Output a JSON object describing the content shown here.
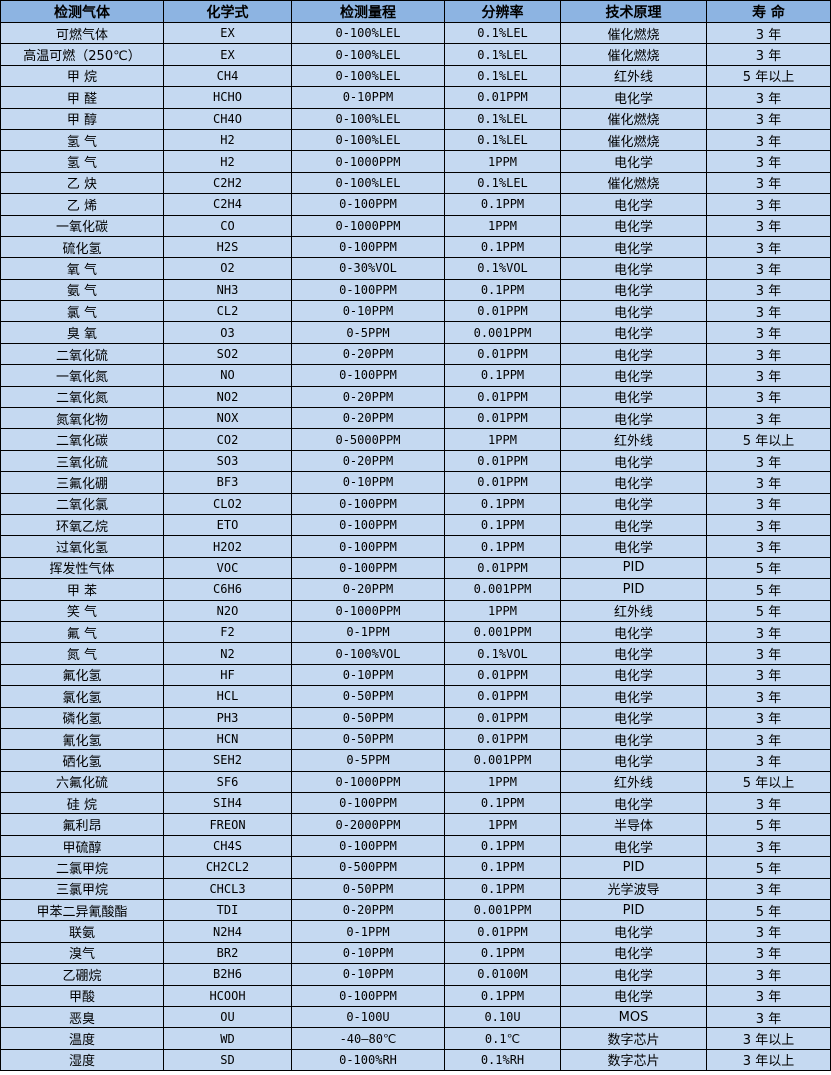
{
  "colors": {
    "header_bg": "#8db4e2",
    "row_bg": "#c5d9f1"
  },
  "table": {
    "columns": [
      "检测气体",
      "化学式",
      "检测量程",
      "分辨率",
      "技术原理",
      "寿 命"
    ],
    "rows": [
      [
        "可燃气体",
        "EX",
        "0-100%LEL",
        "0.1%LEL",
        "催化燃烧",
        "3 年"
      ],
      [
        "高温可燃（250℃）",
        "EX",
        "0-100%LEL",
        "0.1%LEL",
        "催化燃烧",
        "3 年"
      ],
      [
        "甲 烷",
        "CH4",
        "0-100%LEL",
        "0.1%LEL",
        "红外线",
        "5 年以上"
      ],
      [
        "甲 醛",
        "HCHO",
        "0-10PPM",
        "0.01PPM",
        "电化学",
        "3 年"
      ],
      [
        "甲 醇",
        "CH4O",
        "0-100%LEL",
        "0.1%LEL",
        "催化燃烧",
        "3 年"
      ],
      [
        "氢 气",
        "H2",
        "0-100%LEL",
        "0.1%LEL",
        "催化燃烧",
        "3 年"
      ],
      [
        "氢 气",
        "H2",
        "0-1000PPM",
        "1PPM",
        "电化学",
        "3 年"
      ],
      [
        "乙 炔",
        "C2H2",
        "0-100%LEL",
        "0.1%LEL",
        "催化燃烧",
        "3 年"
      ],
      [
        "乙 烯",
        "C2H4",
        "0-100PPM",
        "0.1PPM",
        "电化学",
        "3 年"
      ],
      [
        "一氧化碳",
        "CO",
        "0-1000PPM",
        "1PPM",
        "电化学",
        "3 年"
      ],
      [
        "硫化氢",
        "H2S",
        "0-100PPM",
        "0.1PPM",
        "电化学",
        "3 年"
      ],
      [
        "氧 气",
        "O2",
        "0-30%VOL",
        "0.1%VOL",
        "电化学",
        "3 年"
      ],
      [
        "氨 气",
        "NH3",
        "0-100PPM",
        "0.1PPM",
        "电化学",
        "3 年"
      ],
      [
        "氯 气",
        "CL2",
        "0-10PPM",
        "0.01PPM",
        "电化学",
        "3 年"
      ],
      [
        "臭 氧",
        "O3",
        "0-5PPM",
        "0.001PPM",
        "电化学",
        "3 年"
      ],
      [
        "二氧化硫",
        "SO2",
        "0-20PPM",
        "0.01PPM",
        "电化学",
        "3 年"
      ],
      [
        "一氧化氮",
        "NO",
        "0-100PPM",
        "0.1PPM",
        "电化学",
        "3 年"
      ],
      [
        "二氧化氮",
        "NO2",
        "0-20PPM",
        "0.01PPM",
        "电化学",
        "3 年"
      ],
      [
        "氮氧化物",
        "NOX",
        "0-20PPM",
        "0.01PPM",
        "电化学",
        "3 年"
      ],
      [
        "二氧化碳",
        "CO2",
        "0-5000PPM",
        "1PPM",
        "红外线",
        "5 年以上"
      ],
      [
        "三氧化硫",
        "SO3",
        "0-20PPM",
        "0.01PPM",
        "电化学",
        "3 年"
      ],
      [
        "三氟化硼",
        "BF3",
        "0-10PPM",
        "0.01PPM",
        "电化学",
        "3 年"
      ],
      [
        "二氧化氯",
        "CLO2",
        "0-100PPM",
        "0.1PPM",
        "电化学",
        "3 年"
      ],
      [
        "环氧乙烷",
        "ETO",
        "0-100PPM",
        "0.1PPM",
        "电化学",
        "3 年"
      ],
      [
        "过氧化氢",
        "H2O2",
        "0-100PPM",
        "0.1PPM",
        "电化学",
        "3 年"
      ],
      [
        "挥发性气体",
        "VOC",
        "0-100PPM",
        "0.01PPM",
        "PID",
        "5 年"
      ],
      [
        "甲 苯",
        "C6H6",
        "0-20PPM",
        "0.001PPM",
        "PID",
        "5 年"
      ],
      [
        "笑 气",
        "N2O",
        "0-1000PPM",
        "1PPM",
        "红外线",
        "5 年"
      ],
      [
        "氟 气",
        "F2",
        "0-1PPM",
        "0.001PPM",
        "电化学",
        "3 年"
      ],
      [
        "氮 气",
        "N2",
        "0-100%VOL",
        "0.1%VOL",
        "电化学",
        "3 年"
      ],
      [
        "氟化氢",
        "HF",
        "0-10PPM",
        "0.01PPM",
        "电化学",
        "3 年"
      ],
      [
        "氯化氢",
        "HCL",
        "0-50PPM",
        "0.01PPM",
        "电化学",
        "3 年"
      ],
      [
        "磷化氢",
        "PH3",
        "0-50PPM",
        "0.01PPM",
        "电化学",
        "3 年"
      ],
      [
        "氰化氢",
        "HCN",
        "0-50PPM",
        "0.01PPM",
        "电化学",
        "3 年"
      ],
      [
        "硒化氢",
        "SEH2",
        "0-5PPM",
        "0.001PPM",
        "电化学",
        "3 年"
      ],
      [
        "六氟化硫",
        "SF6",
        "0-1000PPM",
        "1PPM",
        "红外线",
        "5 年以上"
      ],
      [
        "硅 烷",
        "SIH4",
        "0-100PPM",
        "0.1PPM",
        "电化学",
        "3 年"
      ],
      [
        "氟利昂",
        "FREON",
        "0-2000PPM",
        "1PPM",
        "半导体",
        "5 年"
      ],
      [
        "甲硫醇",
        "CH4S",
        "0-100PPM",
        "0.1PPM",
        "电化学",
        "3 年"
      ],
      [
        "二氯甲烷",
        "CH2CL2",
        "0-500PPM",
        "0.1PPM",
        "PID",
        "5 年"
      ],
      [
        "三氯甲烷",
        "CHCL3",
        "0-50PPM",
        "0.1PPM",
        "光学波导",
        "3 年"
      ],
      [
        "甲苯二异氰酸酯",
        "TDI",
        "0-20PPM",
        "0.001PPM",
        "PID",
        "5 年"
      ],
      [
        "联氨",
        "N2H4",
        "0-1PPM",
        "0.01PPM",
        "电化学",
        "3 年"
      ],
      [
        "溴气",
        "BR2",
        "0-10PPM",
        "0.1PPM",
        "电化学",
        "3 年"
      ],
      [
        "乙硼烷",
        "B2H6",
        "0-10PPM",
        "0.0100M",
        "电化学",
        "3 年"
      ],
      [
        "甲酸",
        "HCOOH",
        "0-100PPM",
        "0.1PPM",
        "电化学",
        "3 年"
      ],
      [
        "恶臭",
        "OU",
        "0-100U",
        "0.10U",
        "MOS",
        "3 年"
      ],
      [
        "温度",
        "WD",
        "-40—80℃",
        "0.1℃",
        "数字芯片",
        "3 年以上"
      ],
      [
        "湿度",
        "SD",
        "0-100%RH",
        "0.1%RH",
        "数字芯片",
        "3 年以上"
      ]
    ]
  }
}
